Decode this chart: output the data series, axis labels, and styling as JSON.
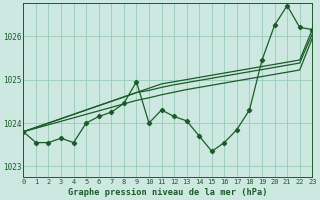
{
  "title": "Graphe pression niveau de la mer (hPa)",
  "bg_color": "#cce8e0",
  "grid_color": "#99ccbb",
  "line_color": "#1a5c28",
  "xlim": [
    0,
    23
  ],
  "ylim": [
    1022.75,
    1026.75
  ],
  "yticks": [
    1023,
    1024,
    1025,
    1026
  ],
  "xticks": [
    0,
    1,
    2,
    3,
    4,
    5,
    6,
    7,
    8,
    9,
    10,
    11,
    12,
    13,
    14,
    15,
    16,
    17,
    18,
    19,
    20,
    21,
    22,
    23
  ],
  "main_series": [
    1023.8,
    1023.55,
    1023.55,
    1023.65,
    1023.55,
    1024.0,
    1024.15,
    1024.25,
    1024.45,
    1024.95,
    1024.0,
    1024.3,
    1024.15,
    1024.05,
    1023.7,
    1023.35,
    1023.55,
    1023.85,
    1024.3,
    1025.45,
    1026.25,
    1026.7,
    1026.2,
    1026.15
  ],
  "envelope1": [
    1023.8,
    1023.9,
    1024.0,
    1024.1,
    1024.2,
    1024.3,
    1024.4,
    1024.5,
    1024.6,
    1024.7,
    1024.8,
    1024.9,
    1024.95,
    1025.0,
    1025.05,
    1025.1,
    1025.15,
    1025.2,
    1025.25,
    1025.3,
    1025.35,
    1025.4,
    1025.45,
    1026.15
  ],
  "envelope2": [
    1023.8,
    1023.9,
    1024.0,
    1024.1,
    1024.2,
    1024.3,
    1024.4,
    1024.5,
    1024.6,
    1024.7,
    1024.75,
    1024.82,
    1024.88,
    1024.93,
    1024.98,
    1025.03,
    1025.08,
    1025.13,
    1025.18,
    1025.23,
    1025.28,
    1025.33,
    1025.38,
    1026.05
  ],
  "envelope3": [
    1023.8,
    1023.88,
    1023.96,
    1024.04,
    1024.12,
    1024.2,
    1024.28,
    1024.36,
    1024.44,
    1024.52,
    1024.58,
    1024.65,
    1024.71,
    1024.77,
    1024.82,
    1024.87,
    1024.92,
    1024.97,
    1025.02,
    1025.07,
    1025.12,
    1025.17,
    1025.22,
    1025.95
  ],
  "ytick_fontsize": 5.5,
  "xtick_fontsize": 5.0,
  "label_fontsize": 6.2
}
